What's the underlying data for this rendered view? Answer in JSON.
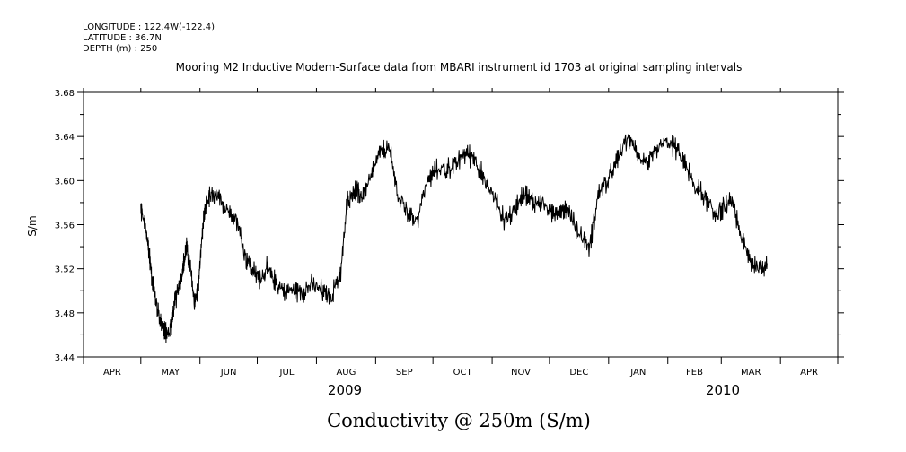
{
  "meta": {
    "longitude": "LONGITUDE : 122.4W(-122.4)",
    "latitude": "LATITUDE : 36.7N",
    "depth": "DEPTH (m) : 250"
  },
  "chart_data": {
    "type": "line",
    "title": "Mooring M2 Inductive Modem-Surface data from MBARI instrument id 1703 at original sampling intervals",
    "xlabel": "Conductivity @ 250m (S/m)",
    "ylabel": "S/m",
    "ylim": [
      3.44,
      3.68
    ],
    "yticks": [
      "3.44",
      "3.48",
      "3.52",
      "3.56",
      "3.60",
      "3.64",
      "3.68"
    ],
    "month_labels": [
      "APR",
      "MAY",
      "JUN",
      "JUL",
      "AUG",
      "SEP",
      "OCT",
      "NOV",
      "DEC",
      "JAN",
      "FEB",
      "MAR",
      "APR"
    ],
    "year_labels": [
      "2009",
      "2010"
    ],
    "xlim_days": [
      0,
      395
    ],
    "series": [
      {
        "name": "Conductivity",
        "x": [
          30,
          32,
          34,
          36,
          38,
          40,
          42,
          44,
          46,
          48,
          50,
          52,
          54,
          56,
          58,
          60,
          62,
          64,
          66,
          70,
          75,
          80,
          85,
          88,
          92,
          96,
          100,
          105,
          110,
          115,
          120,
          125,
          130,
          135,
          138,
          141,
          143,
          146,
          150,
          155,
          160,
          165,
          170,
          175,
          180,
          185,
          190,
          195,
          200,
          205,
          210,
          215,
          220,
          225,
          230,
          235,
          240,
          245,
          250,
          255,
          260,
          265,
          270,
          275,
          280,
          285,
          290,
          295,
          300,
          305,
          310,
          315,
          320,
          325,
          330,
          335,
          340,
          345,
          350,
          355,
          358
        ],
        "values": [
          3.575,
          3.56,
          3.54,
          3.51,
          3.49,
          3.475,
          3.465,
          3.46,
          3.47,
          3.49,
          3.505,
          3.52,
          3.54,
          3.52,
          3.49,
          3.5,
          3.55,
          3.575,
          3.585,
          3.585,
          3.575,
          3.565,
          3.53,
          3.52,
          3.51,
          3.52,
          3.51,
          3.5,
          3.5,
          3.5,
          3.505,
          3.5,
          3.495,
          3.52,
          3.58,
          3.59,
          3.59,
          3.585,
          3.6,
          3.625,
          3.63,
          3.585,
          3.57,
          3.565,
          3.6,
          3.61,
          3.61,
          3.615,
          3.625,
          3.62,
          3.6,
          3.585,
          3.565,
          3.57,
          3.59,
          3.58,
          3.58,
          3.57,
          3.575,
          3.57,
          3.55,
          3.54,
          3.59,
          3.6,
          3.62,
          3.64,
          3.625,
          3.615,
          3.625,
          3.635,
          3.63,
          3.615,
          3.595,
          3.585,
          3.57,
          3.575,
          3.58,
          3.545,
          3.525,
          3.52,
          3.525
        ],
        "noise": 0.006,
        "color": "#000000"
      }
    ]
  }
}
